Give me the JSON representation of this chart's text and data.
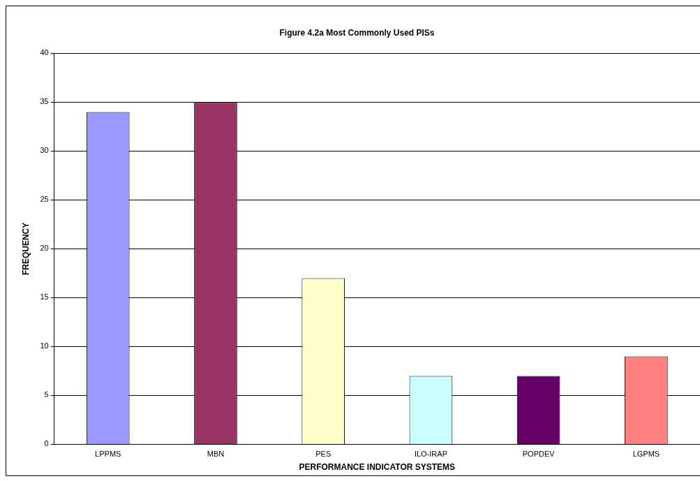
{
  "chart_data": {
    "type": "bar",
    "title": "Figure 4.2a Most Commonly Used PISs",
    "xlabel": "PERFORMANCE INDICATOR SYSTEMS",
    "ylabel": "FREQUENCY",
    "categories": [
      "LPPMS",
      "MBN",
      "PES",
      "ILO-IRAP",
      "POPDEV",
      "LGPMS"
    ],
    "values": [
      34,
      35,
      17,
      7,
      7,
      9
    ],
    "colors": [
      "#9999ff",
      "#993366",
      "#ffffcc",
      "#ccffff",
      "#660066",
      "#ff8080"
    ],
    "ylim": [
      0,
      40
    ],
    "yticks": [
      0,
      5,
      10,
      15,
      20,
      25,
      30,
      35,
      40
    ],
    "grid": "y",
    "legend": false
  }
}
